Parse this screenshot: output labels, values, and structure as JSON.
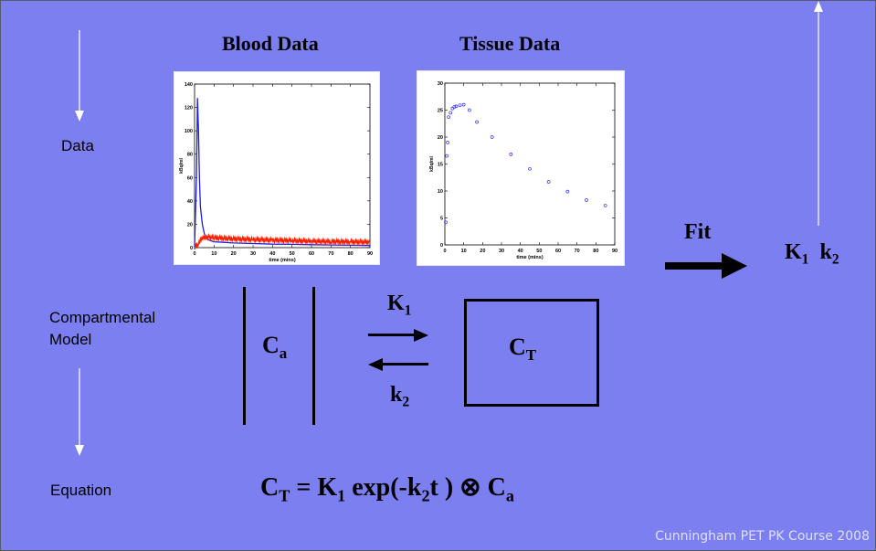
{
  "labels": {
    "data": "Data",
    "model_line1": "Compartmental",
    "model_line2": "Model",
    "equation": "Equation"
  },
  "headings": {
    "blood": "Blood Data",
    "tissue": "Tissue Data"
  },
  "fit": {
    "label": "Fit",
    "p1_sub": "1",
    "p2_sub": "2"
  },
  "model": {
    "ca_sub": "a",
    "ct_sub": "T",
    "k1_sub": "1",
    "k2_sub": "2"
  },
  "equation": {
    "lhs_sub": "T",
    "k1_sub": "1",
    "k2_sub": "2",
    "ca_sub": "a"
  },
  "footer": "Cunningham PET PK Course 2008",
  "colors": {
    "background": "#7b7ff0",
    "blood_series_a": "#2020e0",
    "blood_series_b": "#ff2000",
    "tissue_points": "#3030ff"
  },
  "chart_data": [
    {
      "type": "line",
      "name": "blood",
      "xlabel": "time (mins)",
      "ylabel": "kBq/ml",
      "xlim": [
        0,
        90
      ],
      "ylim": [
        0,
        140
      ],
      "xticks": [
        0,
        10,
        20,
        30,
        40,
        50,
        60,
        70,
        80,
        90
      ],
      "yticks": [
        0,
        20,
        40,
        60,
        80,
        100,
        120,
        140
      ],
      "series": [
        {
          "color": "#2020e0",
          "x": [
            0,
            1,
            1.5,
            2,
            2.5,
            3,
            4,
            5,
            6,
            8,
            10,
            15,
            20,
            30,
            40,
            50,
            60,
            70,
            80,
            90
          ],
          "y": [
            0,
            60,
            128,
            100,
            60,
            35,
            20,
            12,
            8,
            6,
            5,
            4.5,
            4,
            3.5,
            3,
            2.8,
            2.5,
            2.3,
            2,
            1.8
          ]
        },
        {
          "color": "#ff2000",
          "x": [
            0,
            2,
            3,
            4,
            5,
            6,
            8,
            10,
            15,
            20,
            30,
            40,
            50,
            60,
            70,
            80,
            90
          ],
          "y": [
            0,
            3,
            6,
            8,
            9,
            9,
            9,
            8.5,
            8,
            7.5,
            7,
            6.5,
            6,
            5.5,
            5.2,
            5,
            4.8
          ]
        }
      ]
    },
    {
      "type": "scatter",
      "name": "tissue",
      "xlabel": "time (mins)",
      "ylabel": "kBq/ml",
      "xlim": [
        0,
        90
      ],
      "ylim": [
        0,
        30
      ],
      "xticks": [
        0,
        10,
        20,
        30,
        40,
        50,
        60,
        70,
        80,
        90
      ],
      "yticks": [
        0,
        5,
        10,
        15,
        20,
        25,
        30
      ],
      "series": [
        {
          "color": "#3030ff",
          "x": [
            0.5,
            1,
            1.5,
            2,
            3,
            4,
            5,
            6,
            8,
            10,
            13,
            17,
            25,
            35,
            45,
            55,
            65,
            75,
            85
          ],
          "y": [
            4.2,
            16.5,
            19,
            23.7,
            24.5,
            25.3,
            25.6,
            25.7,
            25.9,
            26,
            25,
            22.8,
            20,
            16.8,
            14.1,
            11.7,
            9.9,
            8.3,
            7.3
          ]
        }
      ]
    }
  ]
}
